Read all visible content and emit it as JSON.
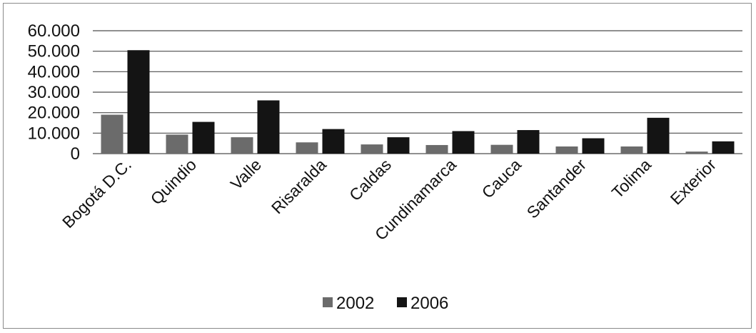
{
  "chart_data": {
    "type": "bar",
    "title": "",
    "xlabel": "",
    "ylabel": "",
    "categories": [
      "Bogotá D.C.",
      "Quindio",
      "Valle",
      "Risaralda",
      "Caldas",
      "Cundinamarca",
      "Cauca",
      "Santander",
      "Tolima",
      "Exterior"
    ],
    "series": [
      {
        "name": "2002",
        "color": "#6b6b6b",
        "values": [
          19000,
          9300,
          8000,
          5500,
          4500,
          4200,
          4300,
          3500,
          3500,
          1000
        ]
      },
      {
        "name": "2006",
        "color": "#141414",
        "values": [
          50500,
          15500,
          26000,
          12000,
          8000,
          11000,
          11500,
          7500,
          17500,
          6000
        ]
      }
    ],
    "ylim": [
      0,
      60000
    ],
    "yticks": [
      0,
      10000,
      20000,
      30000,
      40000,
      50000,
      60000
    ],
    "ytick_labels": [
      "0",
      "10.000",
      "20.000",
      "30.000",
      "40.000",
      "50.000",
      "60.000"
    ],
    "grid": true,
    "legend_position": "bottom-center"
  }
}
